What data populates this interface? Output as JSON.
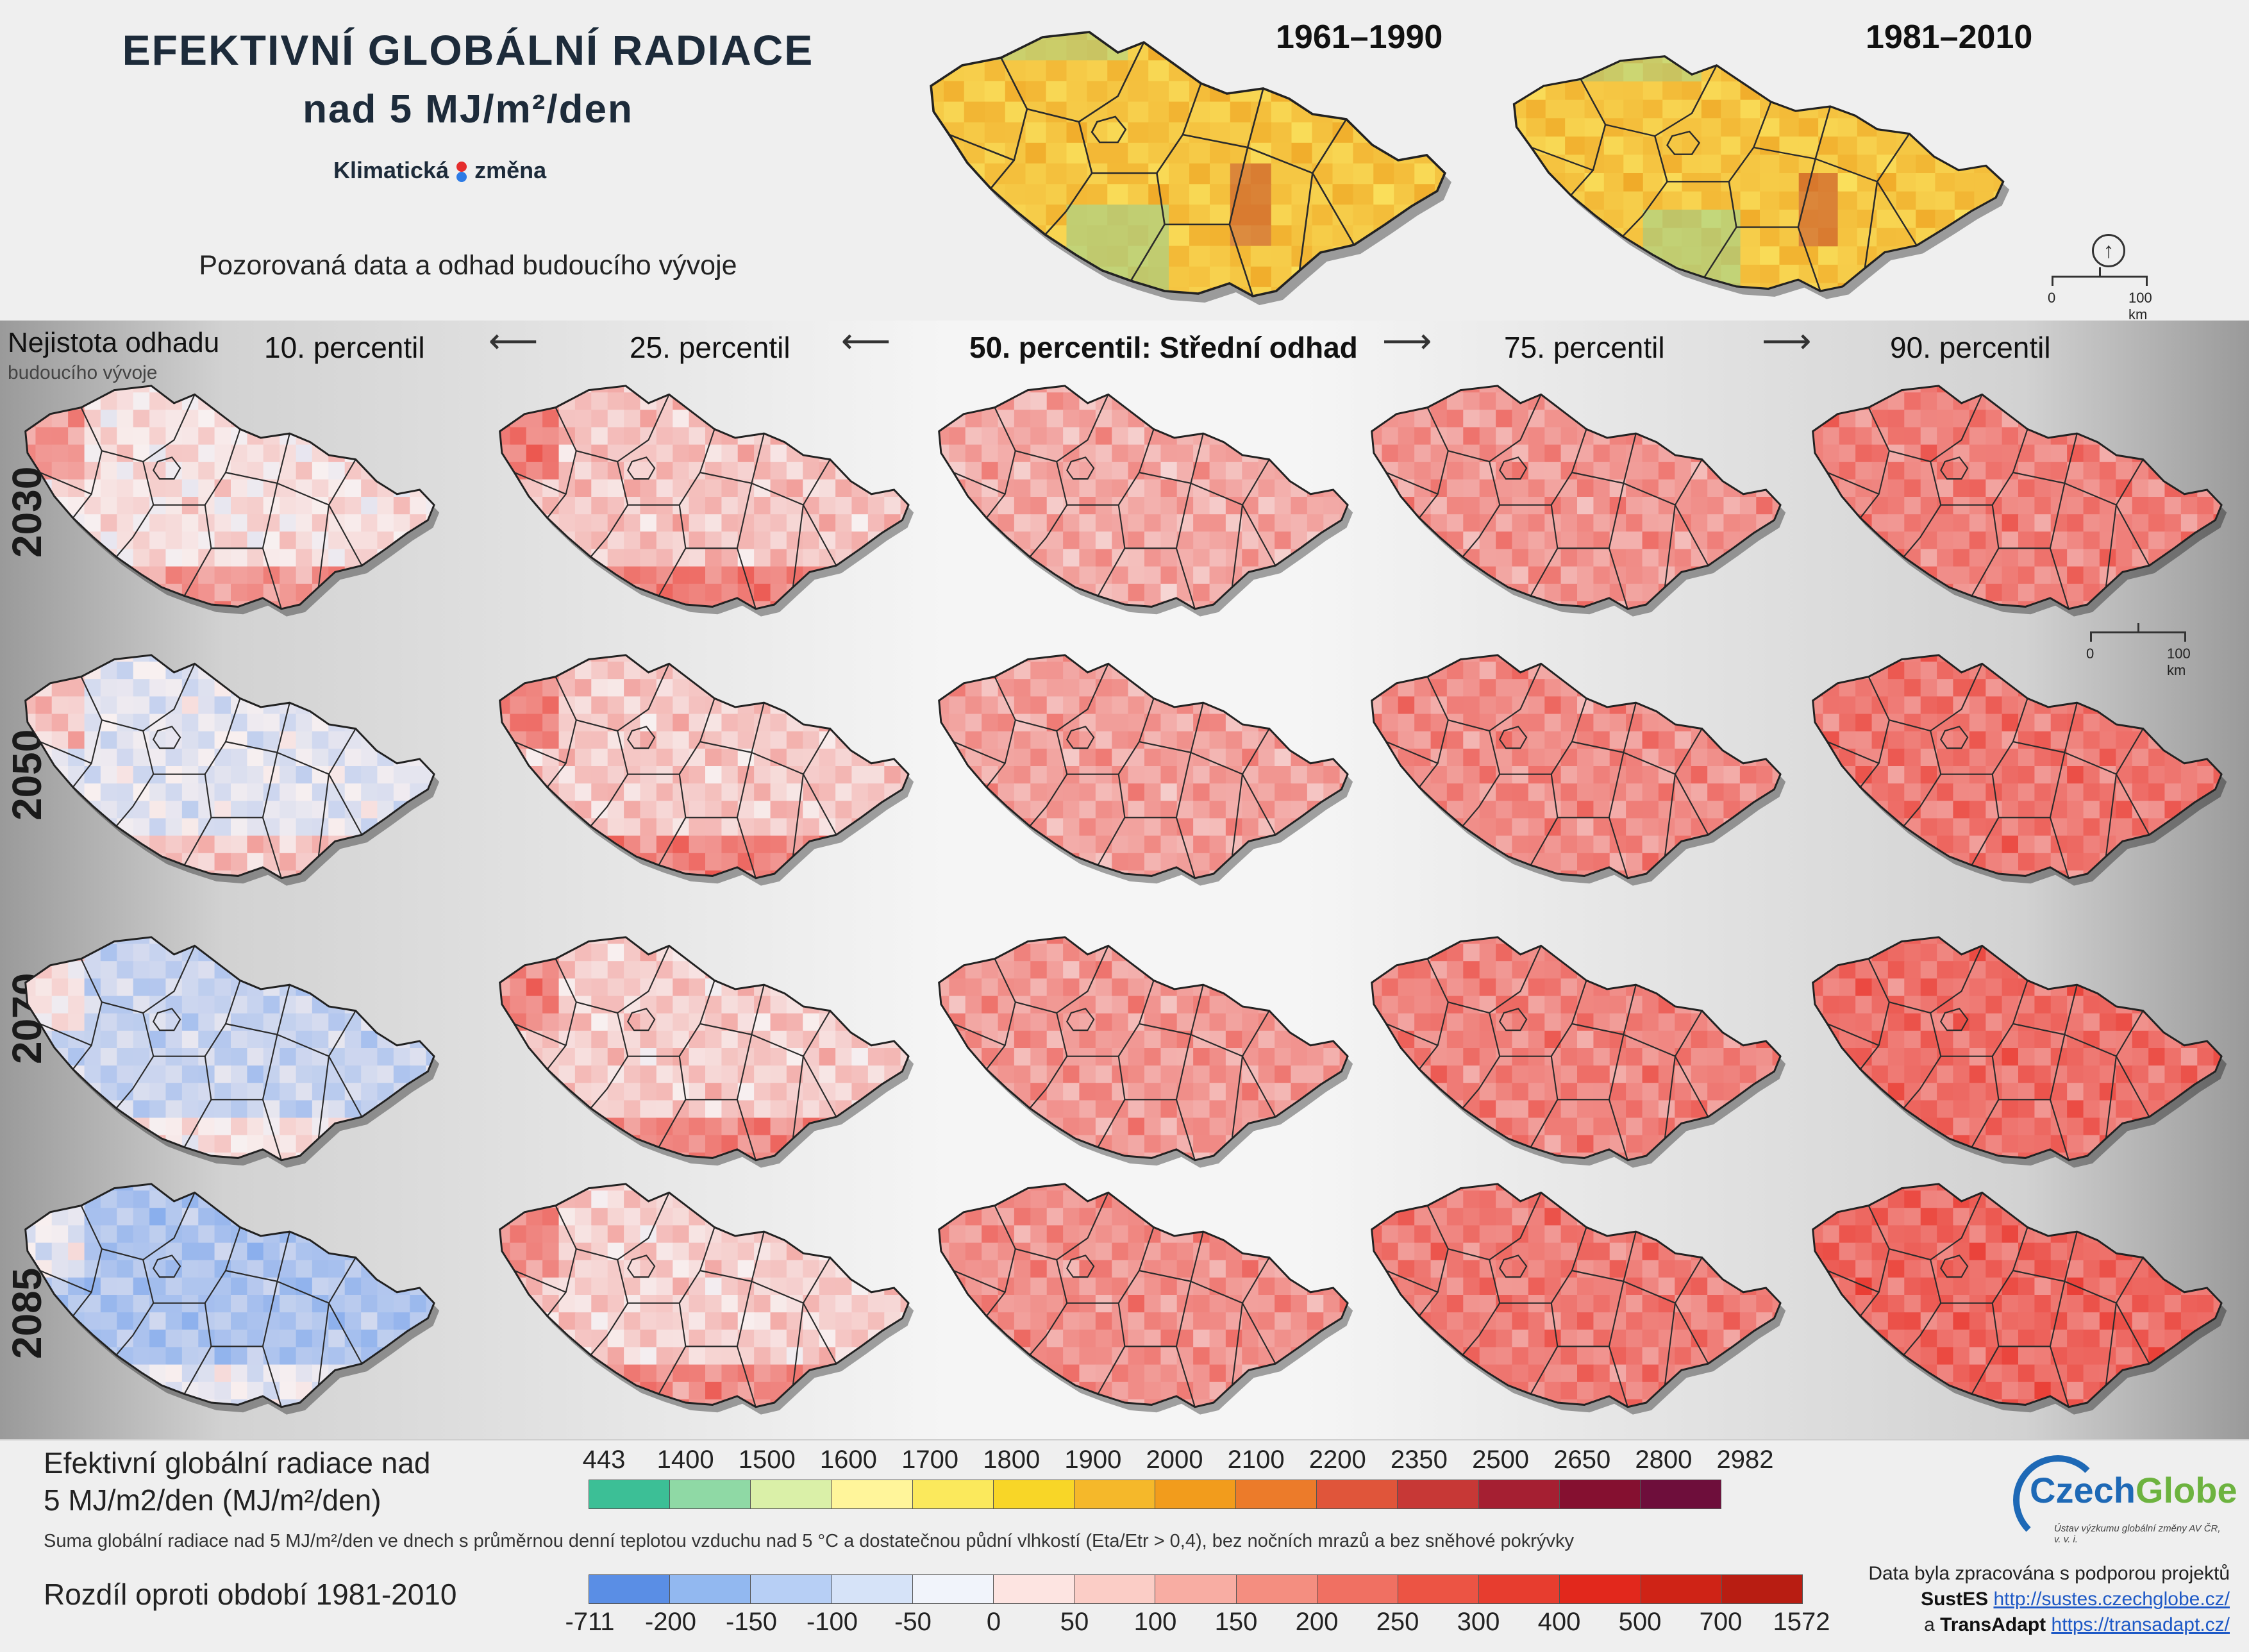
{
  "header": {
    "title_line1": "EFEKTIVNÍ GLOBÁLNÍ RADIACE",
    "title_line2": "nad 5 MJ/m²/den",
    "logo_text_left": "Klimatická",
    "logo_text_right": "změna",
    "subtitle": "Pozorovaná data a odhad budoucího vývoje"
  },
  "observed": {
    "periods": [
      {
        "label": "1961–1990"
      },
      {
        "label": "1981–2010"
      }
    ],
    "scale_bar": {
      "start": "0",
      "end": "100 km"
    }
  },
  "uncertainty": {
    "label_line1": "Nejistota odhadu",
    "label_line2": "budoucího vývoje"
  },
  "columns": [
    {
      "label": "10. percentil",
      "shift": 0.08
    },
    {
      "label": "25. percentil",
      "shift": 0.22
    },
    {
      "label": "50. percentil: Střední odhad",
      "shift": 0.35
    },
    {
      "label": "75. percentil",
      "shift": 0.45
    },
    {
      "label": "90. percentil",
      "shift": 0.55
    }
  ],
  "rows": [
    {
      "year": "2030",
      "level": 0.0
    },
    {
      "year": "2050",
      "level": 0.08
    },
    {
      "year": "2070",
      "level": 0.14
    },
    {
      "year": "2085",
      "level": 0.2
    }
  ],
  "scenario_scale_bar": {
    "start": "0",
    "end": "100 km"
  },
  "legend": {
    "title_line1": "Efektivní globální radiace nad",
    "title_line2": "5 MJ/m2/den (MJ/m²/den)",
    "description": "Suma globální radiace nad 5 MJ/m²/den ve dnech s průměrnou denní teplotou vzduchu nad 5 °C a dostatečnou půdní vlhkostí (Eta/Etr > 0,4), bez nočních mrazů a bez sněhové pokrývky",
    "abs_ticks": [
      "443",
      "1400",
      "1500",
      "1600",
      "1700",
      "1800",
      "1900",
      "2000",
      "2100",
      "2200",
      "2350",
      "2500",
      "2650",
      "2800",
      "2982"
    ],
    "abs_colors": [
      "#3cbf96",
      "#8fd9a5",
      "#daf0a8",
      "#fff59a",
      "#fbe95c",
      "#f8d627",
      "#f5b82a",
      "#f29c1c",
      "#ec7b2a",
      "#e0553a",
      "#c73836",
      "#a51f32",
      "#851030",
      "#6e0e3b"
    ],
    "diff_title": "Rozdíl oproti období 1981-2010",
    "diff_ticks": [
      "-711",
      "-200",
      "-150",
      "-100",
      "-50",
      "0",
      "50",
      "100",
      "150",
      "200",
      "250",
      "300",
      "400",
      "500",
      "700",
      "1572"
    ],
    "diff_colors": [
      "#5a8ee5",
      "#92b8f0",
      "#b7cff5",
      "#d6e3f8",
      "#f1f4fb",
      "#fde4e1",
      "#fbcdc6",
      "#f8ada3",
      "#f48e80",
      "#f07062",
      "#ec5444",
      "#e73d2f",
      "#e2281c",
      "#cf2316",
      "#b81d12"
    ]
  },
  "credits": {
    "logo_czech": "Czech",
    "logo_globe": "Globe",
    "logo_subtitle": "Ústav výzkumu globální změny AV ČR, v. v. i.",
    "line1": "Data byla zpracována s podporou projektů",
    "p1_name": "SustES",
    "p1_url": "http://sustes.czechglobe.cz/",
    "line3_prefix": "a",
    "p2_name": "TransAdapt",
    "p2_url": "https://transadapt.cz/"
  }
}
